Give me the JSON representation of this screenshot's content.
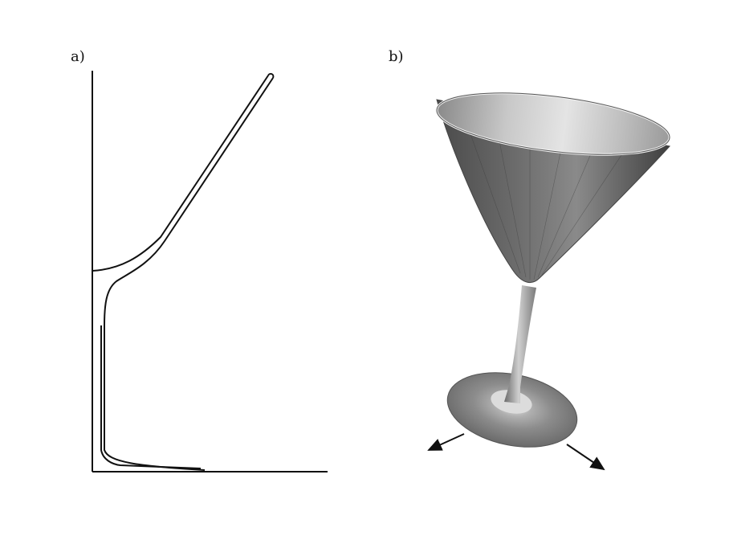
{
  "panels": {
    "a": {
      "label": "a)"
    },
    "b": {
      "label": "b)"
    }
  },
  "colors": {
    "line": "#111111",
    "glass_dark": "#505050",
    "glass_mid": "#7a7a7a",
    "glass_light": "#d6d6d6",
    "arrow": "#111111"
  },
  "icons": {
    "profile": "glass-profile-curve",
    "glass": "martini-glass-3d",
    "arrows": "direction-arrow"
  }
}
